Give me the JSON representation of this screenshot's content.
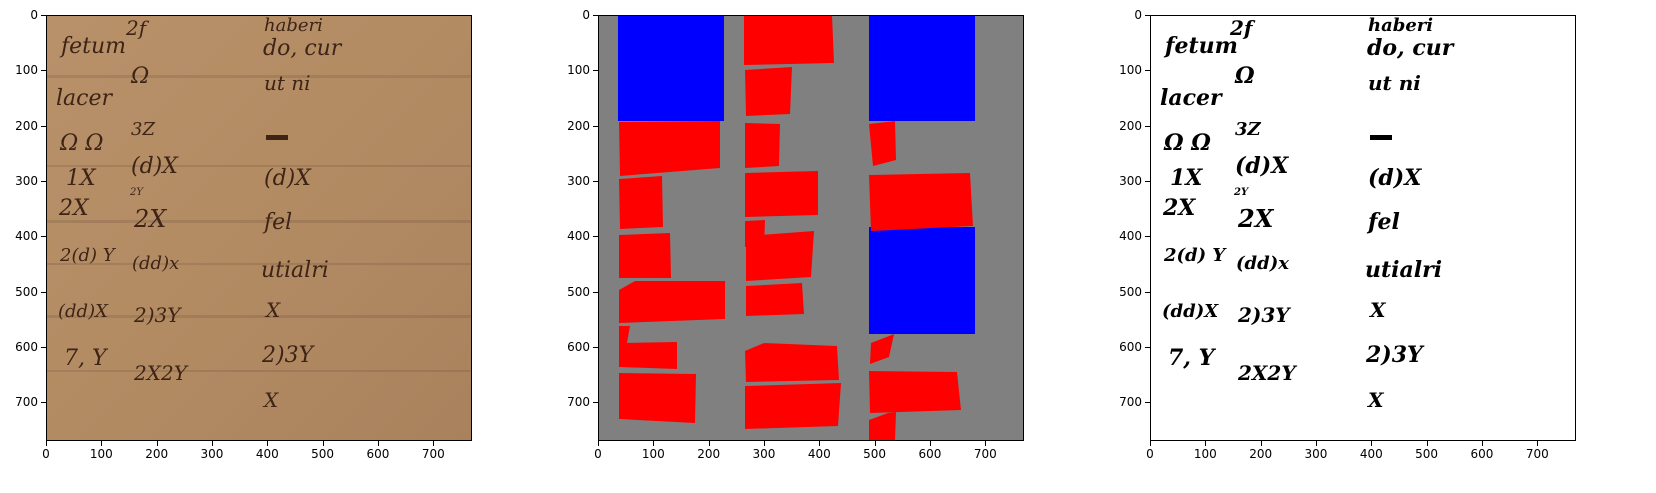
{
  "panels": [
    {
      "name": "original-manuscript",
      "axes": {
        "x_ticks": [
          "0",
          "100",
          "200",
          "300",
          "400",
          "500",
          "600",
          "700"
        ],
        "y_ticks": [
          "0",
          "100",
          "200",
          "300",
          "400",
          "500",
          "600",
          "700"
        ]
      },
      "colors": {
        "parchment": "#b48a62",
        "ink": "#3d2416"
      },
      "handwriting": {
        "column1": [
          "fetum",
          "lacer",
          "Ω Ω",
          "1X",
          "2X",
          "2(d) Y",
          "(dd)X",
          "7, Y"
        ],
        "column2": [
          "2f",
          "Ω",
          "3Z",
          "(d)X",
          "2Y",
          "2X",
          "(dd)x",
          "2)3Y",
          "2X2Y"
        ],
        "column3": [
          "haberi",
          "do, cur",
          "ut ni",
          "(d)X",
          "fel",
          "utialri",
          "X",
          "2)3Y",
          "X"
        ]
      }
    },
    {
      "name": "layout-segmentation",
      "axes": {
        "x_ticks": [
          "0",
          "100",
          "200",
          "300",
          "400",
          "500",
          "600",
          "700"
        ],
        "y_ticks": [
          "0",
          "100",
          "200",
          "300",
          "400",
          "500",
          "600",
          "700"
        ]
      },
      "colors": {
        "background": "#808080",
        "text_region": "#ff0000",
        "image_region": "#0000ff"
      }
    },
    {
      "name": "binarized",
      "axes": {
        "x_ticks": [
          "0",
          "100",
          "200",
          "300",
          "400",
          "500",
          "600",
          "700"
        ],
        "y_ticks": [
          "0",
          "100",
          "200",
          "300",
          "400",
          "500",
          "600",
          "700"
        ]
      },
      "colors": {
        "background": "#ffffff",
        "ink": "#000000"
      }
    }
  ]
}
